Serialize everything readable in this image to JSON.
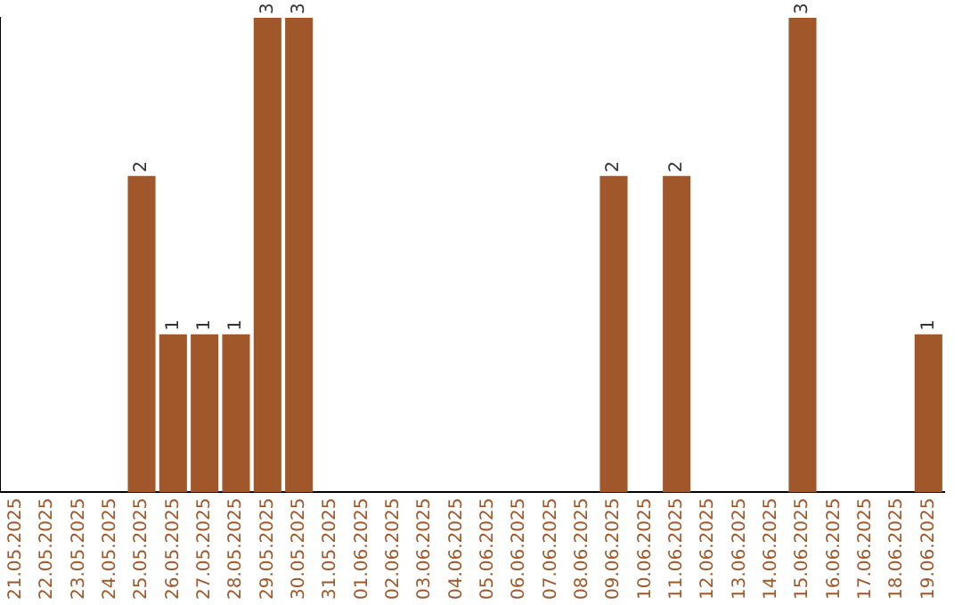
{
  "chart_data": {
    "type": "bar",
    "categories": [
      "21.05.2025",
      "22.05.2025",
      "23.05.2025",
      "24.05.2025",
      "25.05.2025",
      "26.05.2025",
      "27.05.2025",
      "28.05.2025",
      "29.05.2025",
      "30.05.2025",
      "31.05.2025",
      "01.06.2025",
      "02.06.2025",
      "03.06.2025",
      "04.06.2025",
      "05.06.2025",
      "06.06.2025",
      "07.06.2025",
      "08.06.2025",
      "09.06.2025",
      "10.06.2025",
      "11.06.2025",
      "12.06.2025",
      "13.06.2025",
      "14.06.2025",
      "15.06.2025",
      "16.06.2025",
      "17.06.2025",
      "18.06.2025",
      "19.06.2025"
    ],
    "values": [
      0,
      0,
      0,
      0,
      2,
      1,
      1,
      1,
      3,
      3,
      0,
      0,
      0,
      0,
      0,
      0,
      0,
      0,
      0,
      2,
      0,
      2,
      0,
      0,
      0,
      3,
      0,
      0,
      0,
      1
    ],
    "value_labels": [
      null,
      null,
      null,
      null,
      "2",
      "1",
      "1",
      "1",
      "3",
      "3",
      null,
      null,
      null,
      null,
      null,
      null,
      null,
      null,
      null,
      "2",
      null,
      "2",
      null,
      null,
      null,
      "3",
      null,
      null,
      null,
      "1"
    ],
    "color": "#a0572a",
    "grid": false,
    "legend": false,
    "tick_labels": "x"
  }
}
